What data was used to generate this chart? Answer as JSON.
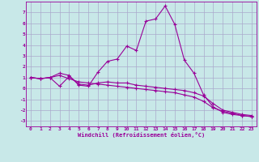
{
  "xlabel": "Windchill (Refroidissement éolien,°C)",
  "x": [
    0,
    1,
    2,
    3,
    4,
    5,
    6,
    7,
    8,
    9,
    10,
    11,
    12,
    13,
    14,
    15,
    16,
    17,
    18,
    19,
    20,
    21,
    22,
    23
  ],
  "line1": [
    1.0,
    0.9,
    1.0,
    1.4,
    1.2,
    0.3,
    0.2,
    1.5,
    2.5,
    2.7,
    3.9,
    3.5,
    6.2,
    6.4,
    7.6,
    5.9,
    2.6,
    1.4,
    -0.6,
    -1.7,
    -2.2,
    -2.4,
    -2.5,
    -2.6
  ],
  "line2": [
    1.0,
    0.9,
    1.0,
    0.2,
    1.1,
    0.4,
    0.3,
    0.5,
    0.6,
    0.5,
    0.5,
    0.3,
    0.2,
    0.1,
    0.0,
    -0.1,
    -0.2,
    -0.4,
    -0.7,
    -1.4,
    -2.0,
    -2.2,
    -2.4,
    -2.5
  ],
  "line3": [
    1.0,
    0.9,
    1.0,
    1.2,
    0.9,
    0.6,
    0.5,
    0.4,
    0.3,
    0.2,
    0.1,
    0.0,
    -0.1,
    -0.2,
    -0.3,
    -0.4,
    -0.6,
    -0.8,
    -1.2,
    -1.8,
    -2.1,
    -2.3,
    -2.5,
    -2.6
  ],
  "ylim": [
    -3.5,
    8.0
  ],
  "yticks": [
    -3,
    -2,
    -1,
    0,
    1,
    2,
    3,
    4,
    5,
    6,
    7
  ],
  "color": "#990099",
  "bg_color": "#c8e8e8",
  "grid_color": "#aaaacc",
  "marker": "+",
  "markersize": 3,
  "linewidth": 0.8,
  "tick_fontsize": 4.5,
  "xlabel_fontsize": 5.0
}
